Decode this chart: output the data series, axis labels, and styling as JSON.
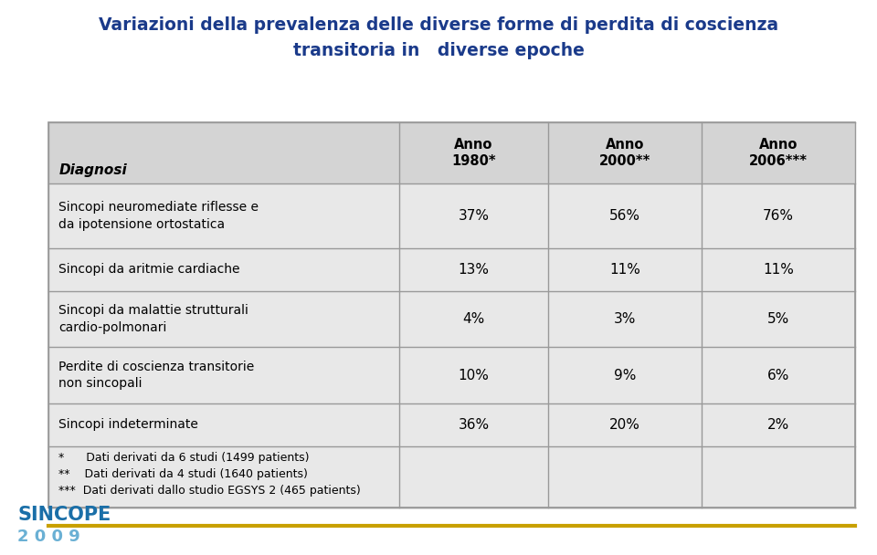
{
  "title_line1": "Variazioni della prevalenza delle diverse forme di perdita di coscienza",
  "title_line2": "transitoria in   diverse epoche",
  "title_color": "#1a3a8a",
  "title_fontsize": 13.5,
  "header_row": [
    "Diagnosi",
    "Anno\n1980*",
    "Anno\n2000**",
    "Anno\n2006***"
  ],
  "data_rows": [
    [
      "Sincopi neuromediate riflesse e\nda ipotensione ortostatica",
      "37%",
      "56%",
      "76%"
    ],
    [
      "Sincopi da aritmie cardiache",
      "13%",
      "11%",
      "11%"
    ],
    [
      "Sincopi da malattie strutturali\ncardio-polmonari",
      "4%",
      "3%",
      "5%"
    ],
    [
      "Perdite di coscienza transitorie\nnon sincopali",
      "10%",
      "9%",
      "6%"
    ],
    [
      "Sincopi indeterminate",
      "36%",
      "20%",
      "2%"
    ]
  ],
  "footnotes": [
    "*      Dati derivati da 6 studi (1499 patients)",
    "**    Dati derivati da 4 studi (1640 patients)",
    "***  Dati derivati dallo studio EGSYS 2 (465 patients)"
  ],
  "table_bg": "#e8e8e8",
  "header_bg": "#d4d4d4",
  "border_color": "#999999",
  "text_color": "#000000",
  "sincope_blue": "#1a6fa8",
  "sincope_year_blue": "#6ab0d4",
  "sincope_gold": "#c8a000",
  "background_color": "#ffffff"
}
